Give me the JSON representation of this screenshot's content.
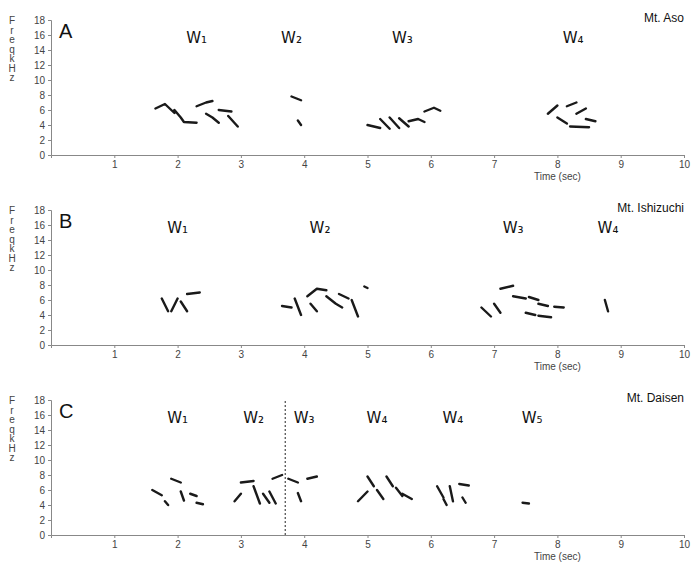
{
  "chart_data": [
    {
      "type": "line",
      "panel_label": "A",
      "title": "Mt. Aso",
      "xlabel": "Time (sec)",
      "ylabel": "Freq kHz",
      "color": "#1a1a1a",
      "xlim": [
        0,
        10
      ],
      "ylim": [
        0,
        18
      ],
      "xticks": [
        1,
        2,
        3,
        4,
        5,
        6,
        7,
        8,
        9,
        10
      ],
      "yticks": [
        0,
        2,
        4,
        6,
        8,
        10,
        12,
        14,
        16,
        18
      ],
      "x": [
        1.65,
        1.8,
        1.95,
        1.95,
        1.95,
        2.05,
        2.1,
        2.3,
        2.3,
        2.3,
        2.45,
        2.55,
        2.55,
        2.45,
        2.55,
        2.65,
        2.65,
        2.65,
        2.85,
        2.85,
        2.8,
        2.95,
        2.95,
        3.8,
        3.95,
        3.95,
        3.9,
        3.95,
        3.95,
        5.0,
        5.2,
        5.2,
        5.2,
        5.35,
        5.35,
        5.35,
        5.5,
        5.5,
        5.5,
        5.65,
        5.65,
        5.65,
        5.8,
        5.9,
        5.9,
        5.9,
        6.05,
        6.15,
        6.15,
        7.85,
        8.0,
        8.0,
        8.0,
        8.15,
        8.15,
        8.15,
        8.3,
        8.3,
        8.3,
        8.45,
        8.45,
        8.2,
        8.5,
        8.5,
        8.45,
        8.6
      ],
      "values": [
        6.2,
        6.8,
        5.6,
        null,
        6.0,
        5.0,
        4.4,
        4.3,
        null,
        6.5,
        7.0,
        7.2,
        null,
        5.5,
        5.0,
        4.3,
        null,
        6.0,
        5.8,
        null,
        5.2,
        3.8,
        null,
        7.8,
        7.3,
        null,
        4.6,
        4.0,
        null,
        4.0,
        3.6,
        null,
        4.8,
        3.5,
        null,
        5.0,
        3.6,
        null,
        4.9,
        3.8,
        null,
        4.5,
        4.8,
        4.4,
        null,
        5.8,
        6.3,
        5.9,
        null,
        5.5,
        6.6,
        null,
        5.0,
        4.2,
        null,
        6.5,
        7.0,
        null,
        5.5,
        6.2,
        null,
        3.8,
        3.7,
        null,
        4.8,
        4.5
      ],
      "annotations": [
        {
          "text": "W₁",
          "x": 2.3,
          "y": 15
        },
        {
          "text": "W₂",
          "x": 3.8,
          "y": 15
        },
        {
          "text": "W₃",
          "x": 5.55,
          "y": 15
        },
        {
          "text": "W₄",
          "x": 8.25,
          "y": 15
        }
      ],
      "grid": false
    },
    {
      "type": "line",
      "panel_label": "B",
      "title": "Mt. Ishizuchi",
      "xlabel": "Time (sec)",
      "ylabel": "Freq kHz",
      "color": "#1a1a1a",
      "xlim": [
        0,
        10
      ],
      "ylim": [
        0,
        18
      ],
      "xticks": [
        1,
        2,
        3,
        4,
        5,
        6,
        7,
        8,
        9,
        10
      ],
      "yticks": [
        0,
        2,
        4,
        6,
        8,
        10,
        12,
        14,
        16,
        18
      ],
      "x": [
        1.75,
        1.85,
        1.85,
        1.9,
        2.0,
        2.0,
        2.05,
        2.15,
        2.15,
        2.15,
        2.35,
        2.35,
        3.65,
        3.8,
        3.8,
        3.85,
        3.95,
        3.95,
        4.05,
        4.2,
        4.35,
        4.35,
        4.1,
        4.2,
        4.2,
        4.35,
        4.5,
        4.6,
        4.6,
        4.55,
        4.7,
        4.7,
        4.75,
        4.85,
        4.85,
        4.95,
        5.0,
        5.0,
        6.8,
        6.95,
        6.95,
        7.0,
        7.1,
        7.1,
        7.1,
        7.3,
        7.3,
        7.3,
        7.5,
        7.5,
        7.55,
        7.7,
        7.7,
        7.7,
        7.85,
        7.85,
        7.5,
        7.65,
        7.65,
        7.95,
        8.1,
        8.1,
        7.7,
        7.9,
        7.9,
        8.75,
        8.8
      ],
      "values": [
        6.2,
        4.5,
        null,
        4.5,
        6.2,
        null,
        5.8,
        4.5,
        null,
        6.8,
        7.0,
        null,
        5.2,
        5.0,
        null,
        6.2,
        4.0,
        null,
        6.5,
        7.5,
        7.3,
        null,
        5.5,
        4.5,
        null,
        6.5,
        5.5,
        5.0,
        null,
        6.8,
        6.2,
        null,
        6.0,
        3.8,
        null,
        7.8,
        7.6,
        null,
        5.0,
        3.8,
        null,
        5.5,
        4.3,
        null,
        7.5,
        7.9,
        null,
        6.5,
        6.2,
        null,
        6.4,
        6.0,
        null,
        5.5,
        5.2,
        null,
        4.3,
        4.0,
        null,
        5.1,
        5.0,
        null,
        3.9,
        3.7,
        null,
        6.0,
        4.5
      ],
      "annotations": [
        {
          "text": "W₁",
          "x": 2.0,
          "y": 15
        },
        {
          "text": "W₂",
          "x": 4.25,
          "y": 15
        },
        {
          "text": "W₃",
          "x": 7.3,
          "y": 15
        },
        {
          "text": "W₄",
          "x": 8.8,
          "y": 15
        }
      ],
      "grid": false
    },
    {
      "type": "line",
      "panel_label": "C",
      "title": "Mt. Daisen",
      "xlabel": "Time (sec)",
      "ylabel": "Freq kHz",
      "color": "#1a1a1a",
      "xlim": [
        0,
        10
      ],
      "ylim": [
        0,
        18
      ],
      "xticks": [
        1,
        2,
        3,
        4,
        5,
        6,
        7,
        8,
        9,
        10
      ],
      "yticks": [
        0,
        2,
        4,
        6,
        8,
        10,
        12,
        14,
        16,
        18
      ],
      "x": [
        1.6,
        1.75,
        1.75,
        1.8,
        1.85,
        1.85,
        1.9,
        2.05,
        2.05,
        2.05,
        2.1,
        2.1,
        2.2,
        2.3,
        2.3,
        2.3,
        2.4,
        2.4,
        2.9,
        3.0,
        3.0,
        3.0,
        3.2,
        3.2,
        3.2,
        3.3,
        3.3,
        3.35,
        3.45,
        3.45,
        3.45,
        3.55,
        3.55,
        3.5,
        3.65,
        3.65,
        3.75,
        3.9,
        3.9,
        3.9,
        3.95,
        3.95,
        4.05,
        4.2,
        4.2,
        4.85,
        5.0,
        5.0,
        5.0,
        5.1,
        5.1,
        5.15,
        5.25,
        5.25,
        5.3,
        5.4,
        5.4,
        5.45,
        5.55,
        5.55,
        5.55,
        5.7,
        5.7,
        6.1,
        6.2,
        6.2,
        6.2,
        6.25,
        6.25,
        6.3,
        6.35,
        6.35,
        6.45,
        6.6,
        6.6,
        6.5,
        6.55,
        6.55,
        7.45,
        7.55
      ],
      "values": [
        6.0,
        5.3,
        null,
        4.5,
        4.0,
        null,
        7.5,
        7.0,
        null,
        5.8,
        4.6,
        null,
        5.5,
        5.2,
        null,
        4.3,
        4.1,
        null,
        4.5,
        5.5,
        null,
        7.0,
        7.2,
        null,
        6.5,
        4.2,
        null,
        5.5,
        4.3,
        null,
        5.8,
        4.2,
        null,
        7.5,
        8.0,
        null,
        7.5,
        7.0,
        null,
        5.6,
        4.5,
        null,
        7.5,
        7.8,
        null,
        4.5,
        5.8,
        null,
        7.8,
        6.5,
        null,
        6.0,
        4.8,
        null,
        7.8,
        6.5,
        null,
        6.3,
        5.2,
        null,
        5.5,
        4.8,
        null,
        6.5,
        5.0,
        null,
        4.8,
        4.0,
        null,
        6.5,
        4.5,
        null,
        6.8,
        6.6,
        null,
        5.0,
        4.3,
        null,
        4.3,
        4.2
      ],
      "annotations": [
        {
          "text": "W₁",
          "x": 2.0,
          "y": 15
        },
        {
          "text": "W₂",
          "x": 3.2,
          "y": 15
        },
        {
          "text": "W₃",
          "x": 4.0,
          "y": 15
        },
        {
          "text": "W₄",
          "x": 5.15,
          "y": 15
        },
        {
          "text": "W₄",
          "x": 6.35,
          "y": 15
        },
        {
          "text": "W₅",
          "x": 7.6,
          "y": 15
        }
      ],
      "vlines": [
        3.7
      ],
      "grid": false
    }
  ]
}
